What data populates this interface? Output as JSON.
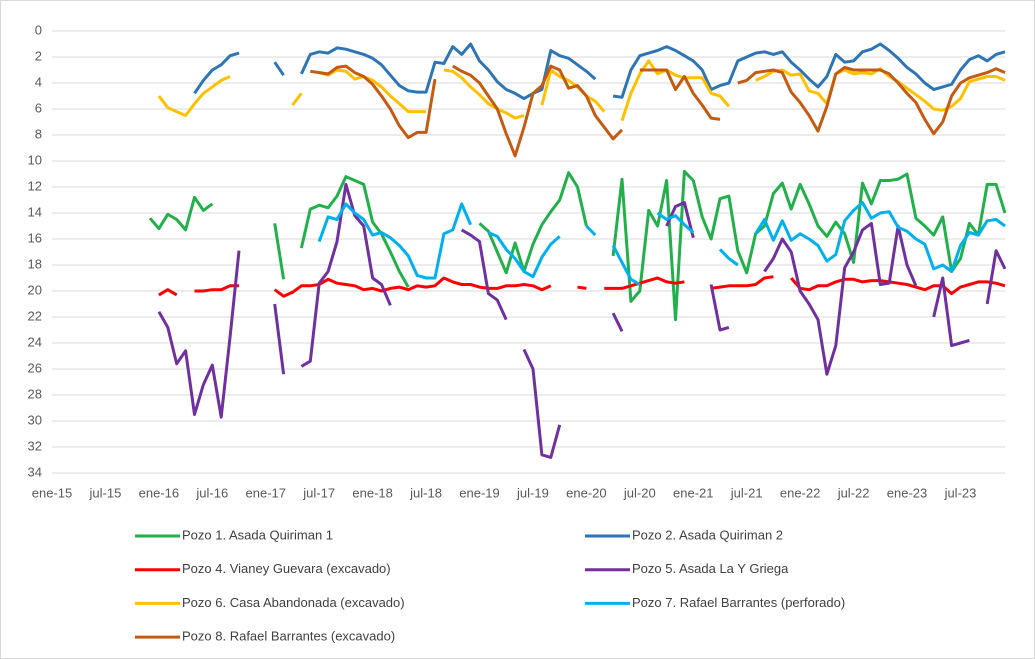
{
  "chart_data": {
    "type": "line",
    "categories": [
      "ene-15",
      null,
      null,
      null,
      null,
      null,
      "jul-15",
      null,
      null,
      null,
      null,
      null,
      "ene-16",
      null,
      null,
      null,
      null,
      null,
      "jul-16",
      null,
      null,
      null,
      null,
      null,
      "ene-17",
      null,
      null,
      null,
      null,
      null,
      "jul-17",
      null,
      null,
      null,
      null,
      null,
      "ene-18",
      null,
      null,
      null,
      null,
      null,
      "jul-18",
      null,
      null,
      null,
      null,
      null,
      "ene-19",
      null,
      null,
      null,
      null,
      null,
      "jul-19",
      null,
      null,
      null,
      null,
      null,
      "ene-20",
      null,
      null,
      null,
      null,
      null,
      "jul-20",
      null,
      null,
      null,
      null,
      null,
      "ene-21",
      null,
      null,
      null,
      null,
      null,
      "jul-21",
      null,
      null,
      null,
      null,
      null,
      "ene-22",
      null,
      null,
      null,
      null,
      null,
      "jul-22",
      null,
      null,
      null,
      null,
      null,
      "ene-23",
      null,
      null,
      null,
      null,
      null,
      "jul-23",
      null,
      null,
      null,
      null,
      null
    ],
    "ylim": [
      0,
      34
    ],
    "y_inverted": true,
    "yticks": [
      0,
      2,
      4,
      6,
      8,
      10,
      12,
      14,
      16,
      18,
      20,
      22,
      24,
      26,
      28,
      30,
      32,
      34
    ],
    "grid": true,
    "legend": "bottom",
    "series": [
      {
        "name": "Pozo 1. Asada Quiriman 1",
        "color": "#22b04b",
        "values": [
          null,
          null,
          null,
          null,
          null,
          null,
          null,
          null,
          null,
          null,
          null,
          14.4,
          15.2,
          14.1,
          14.5,
          15.3,
          12.8,
          13.8,
          13.3,
          null,
          null,
          null,
          null,
          null,
          null,
          14.8,
          19.1,
          null,
          16.7,
          13.7,
          13.4,
          13.6,
          12.7,
          11.2,
          11.5,
          11.8,
          14.7,
          15.6,
          17.0,
          18.5,
          19.7,
          null,
          null,
          null,
          null,
          null,
          null,
          null,
          14.8,
          15.4,
          17.0,
          18.6,
          16.3,
          18.5,
          16.4,
          14.9,
          13.9,
          13.0,
          10.9,
          12.0,
          15.0,
          null,
          null,
          17.3,
          11.4,
          20.8,
          20.0,
          13.8,
          15.0,
          11.5,
          22.2,
          10.8,
          11.5,
          14.3,
          16.0,
          12.9,
          12.7,
          16.9,
          18.6,
          15.6,
          15.0,
          12.5,
          11.7,
          13.7,
          11.8,
          13.3,
          15.0,
          15.8,
          14.7,
          15.6,
          17.8,
          11.7,
          13.3,
          11.5,
          11.5,
          11.4,
          11.0,
          14.4,
          15.0,
          15.7,
          14.3,
          18.5,
          17.5,
          14.8,
          15.7,
          11.8,
          11.8,
          14.0
        ]
      },
      {
        "name": "Pozo 2. Asada Quiriman 2",
        "color": "#2e75b6",
        "values": [
          null,
          null,
          null,
          null,
          null,
          null,
          null,
          null,
          null,
          null,
          null,
          null,
          null,
          null,
          null,
          null,
          4.8,
          3.8,
          3.0,
          2.6,
          1.9,
          1.7,
          null,
          null,
          null,
          2.4,
          3.4,
          null,
          3.3,
          1.8,
          1.6,
          1.7,
          1.3,
          1.4,
          1.6,
          1.8,
          2.1,
          2.6,
          3.4,
          4.2,
          4.6,
          4.7,
          4.7,
          2.4,
          2.5,
          1.2,
          1.8,
          1.0,
          2.3,
          3.0,
          3.9,
          4.5,
          4.8,
          5.2,
          4.8,
          4.5,
          1.5,
          1.9,
          2.1,
          2.6,
          3.1,
          3.7,
          null,
          5.0,
          5.1,
          3.0,
          1.9,
          1.7,
          1.5,
          1.2,
          1.5,
          1.9,
          2.3,
          3.0,
          4.5,
          4.2,
          4.0,
          2.3,
          2.0,
          1.7,
          1.6,
          1.8,
          1.6,
          2.4,
          3.0,
          3.7,
          4.3,
          3.5,
          1.8,
          2.4,
          2.3,
          1.6,
          1.4,
          1.0,
          1.5,
          2.1,
          2.8,
          3.3,
          4.0,
          4.5,
          4.3,
          4.1,
          3.0,
          2.2,
          1.9,
          2.3,
          1.8,
          1.6
        ]
      },
      {
        "name": "Pozo 4. Vianey Guevara (excavado)",
        "color": "#ff0000",
        "values": [
          null,
          null,
          null,
          null,
          null,
          null,
          null,
          null,
          null,
          null,
          null,
          null,
          20.3,
          19.9,
          20.3,
          null,
          20.0,
          20.0,
          19.9,
          19.9,
          19.6,
          19.6,
          null,
          null,
          null,
          19.9,
          20.4,
          20.1,
          19.6,
          19.6,
          19.5,
          19.1,
          19.4,
          19.5,
          19.6,
          19.9,
          19.8,
          20.0,
          19.8,
          19.7,
          19.9,
          19.6,
          19.7,
          19.6,
          19.0,
          19.3,
          19.5,
          19.5,
          19.7,
          19.8,
          19.8,
          19.6,
          19.6,
          19.5,
          19.6,
          19.9,
          19.6,
          null,
          null,
          19.7,
          19.8,
          null,
          19.8,
          19.8,
          19.8,
          19.6,
          19.4,
          19.2,
          19.0,
          19.3,
          19.4,
          19.3,
          null,
          null,
          19.8,
          19.7,
          19.6,
          19.6,
          19.6,
          19.5,
          19.0,
          18.9,
          null,
          19.0,
          19.8,
          19.9,
          19.6,
          19.6,
          19.3,
          19.1,
          19.1,
          19.3,
          19.2,
          19.2,
          19.3,
          19.4,
          19.5,
          19.7,
          19.9,
          19.6,
          19.6,
          20.2,
          19.7,
          19.5,
          19.3,
          19.3,
          19.4,
          19.6
        ]
      },
      {
        "name": "Pozo 5. Asada La Y Griega",
        "color": "#7030a0",
        "values": [
          null,
          null,
          null,
          null,
          null,
          null,
          null,
          null,
          null,
          null,
          null,
          null,
          21.6,
          22.8,
          25.6,
          24.6,
          29.5,
          27.2,
          25.7,
          29.7,
          23.5,
          16.9,
          null,
          null,
          null,
          21.0,
          26.4,
          null,
          25.8,
          25.4,
          19.4,
          18.5,
          16.2,
          11.8,
          14.2,
          15.0,
          19.0,
          19.5,
          21.1,
          null,
          null,
          null,
          null,
          null,
          null,
          null,
          15.3,
          15.7,
          16.2,
          20.2,
          20.7,
          22.2,
          null,
          24.5,
          26.0,
          32.6,
          32.8,
          30.3,
          null,
          null,
          null,
          null,
          null,
          21.7,
          23.1,
          null,
          null,
          null,
          null,
          15.0,
          13.5,
          13.2,
          15.9,
          null,
          19.5,
          23.0,
          22.8,
          null,
          null,
          null,
          18.5,
          17.5,
          16.0,
          17.0,
          20.0,
          21.0,
          22.2,
          26.4,
          24.2,
          18.2,
          17.0,
          15.3,
          14.8,
          19.5,
          19.4,
          15.0,
          18.0,
          19.6,
          null,
          22.0,
          19.0,
          24.2,
          24.0,
          23.8,
          null,
          21.0,
          16.9,
          18.3
        ]
      },
      {
        "name": "Pozo 6. Casa Abandonada (excavado)",
        "color": "#ffc000",
        "values": [
          null,
          null,
          null,
          null,
          null,
          null,
          null,
          null,
          null,
          null,
          null,
          null,
          5.0,
          5.9,
          6.2,
          6.5,
          5.6,
          4.8,
          4.3,
          3.8,
          3.5,
          null,
          null,
          null,
          null,
          null,
          null,
          5.7,
          4.8,
          null,
          3.2,
          3.4,
          3.0,
          3.1,
          3.7,
          3.5,
          3.8,
          4.3,
          5.0,
          5.6,
          6.2,
          6.2,
          6.2,
          null,
          3.0,
          3.1,
          3.6,
          4.3,
          4.9,
          5.6,
          6.0,
          6.3,
          6.7,
          6.5,
          null,
          5.7,
          3.0,
          3.5,
          3.8,
          4.3,
          5.0,
          5.4,
          6.2,
          null,
          6.9,
          4.8,
          3.3,
          2.3,
          3.3,
          3.0,
          3.4,
          3.6,
          3.6,
          3.6,
          4.8,
          5.0,
          5.8,
          null,
          null,
          3.8,
          3.5,
          3.1,
          3.0,
          3.4,
          3.3,
          4.6,
          4.8,
          5.6,
          3.3,
          3.0,
          3.3,
          3.2,
          3.3,
          2.9,
          3.5,
          3.9,
          4.4,
          4.9,
          5.4,
          6.0,
          6.1,
          5.8,
          5.2,
          3.9,
          3.7,
          3.5,
          3.5,
          3.8
        ]
      },
      {
        "name": "Pozo 7. Rafael Barrantes (perforado)",
        "color": "#00b0f0",
        "values": [
          null,
          null,
          null,
          null,
          null,
          null,
          null,
          null,
          null,
          null,
          null,
          null,
          null,
          null,
          null,
          null,
          null,
          null,
          null,
          null,
          null,
          null,
          null,
          null,
          null,
          null,
          null,
          null,
          null,
          null,
          16.2,
          14.3,
          14.5,
          13.3,
          14.0,
          14.5,
          15.7,
          15.5,
          15.9,
          16.5,
          17.3,
          18.8,
          19.0,
          19.0,
          15.6,
          15.3,
          13.3,
          14.9,
          null,
          15.5,
          15.8,
          16.8,
          17.5,
          18.5,
          18.9,
          17.4,
          16.4,
          15.8,
          null,
          null,
          15.0,
          15.7,
          null,
          16.5,
          17.8,
          19.1,
          19.5,
          null,
          14.0,
          14.5,
          14.2,
          14.9,
          15.5,
          null,
          null,
          16.8,
          17.5,
          18.0,
          null,
          15.6,
          14.5,
          16.1,
          14.6,
          16.1,
          15.6,
          16.0,
          16.5,
          17.7,
          17.2,
          14.6,
          13.8,
          13.2,
          14.4,
          14.0,
          13.9,
          15.1,
          15.4,
          16.0,
          16.4,
          18.3,
          18.0,
          18.5,
          16.5,
          15.5,
          15.7,
          14.6,
          14.5,
          15.0
        ]
      },
      {
        "name": "Pozo 8. Rafael Barrantes (excavado)",
        "color": "#c55a11",
        "values": [
          null,
          null,
          null,
          null,
          null,
          null,
          null,
          null,
          null,
          null,
          null,
          null,
          null,
          null,
          null,
          null,
          null,
          null,
          null,
          null,
          null,
          null,
          null,
          null,
          null,
          null,
          null,
          null,
          null,
          3.1,
          3.2,
          3.3,
          2.8,
          2.7,
          3.2,
          3.5,
          4.1,
          5.0,
          6.0,
          7.3,
          8.2,
          7.8,
          7.8,
          3.7,
          null,
          2.7,
          3.1,
          3.4,
          4.0,
          5.0,
          6.0,
          7.9,
          9.6,
          7.4,
          4.8,
          4.2,
          2.7,
          3.0,
          4.4,
          4.2,
          5.0,
          6.5,
          7.4,
          8.3,
          7.6,
          null,
          3.0,
          3.0,
          3.0,
          3.0,
          4.5,
          3.5,
          4.8,
          5.7,
          6.7,
          6.8,
          null,
          4.0,
          3.8,
          3.2,
          3.1,
          3.0,
          3.2,
          4.7,
          5.5,
          6.5,
          7.7,
          5.8,
          3.3,
          2.8,
          3.0,
          3.0,
          3.0,
          3.0,
          3.3,
          4.0,
          4.8,
          5.5,
          6.8,
          7.9,
          7.0,
          5.0,
          4.0,
          3.6,
          3.4,
          3.2,
          2.9,
          3.2
        ]
      }
    ]
  }
}
